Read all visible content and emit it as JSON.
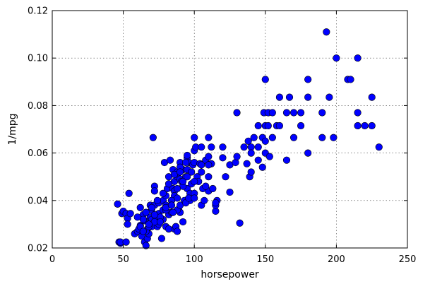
{
  "chart_data": {
    "type": "scatter",
    "title": "",
    "xlabel": "horsepower",
    "ylabel": "1/mpg",
    "xlim": [
      0,
      250
    ],
    "ylim": [
      0.02,
      0.12
    ],
    "xticks": [
      0,
      50,
      100,
      150,
      200,
      250
    ],
    "yticks": [
      0.02,
      0.04,
      0.06,
      0.08,
      0.1,
      0.12
    ],
    "xtick_labels": [
      "0",
      "50",
      "100",
      "150",
      "200",
      "250"
    ],
    "ytick_labels": [
      "0.02",
      "0.04",
      "0.06",
      "0.08",
      "0.10",
      "0.12"
    ],
    "grid": true,
    "marker_color": "#0000ff",
    "series": [
      {
        "x": [
          46,
          47,
          48,
          48,
          49,
          50,
          52,
          52,
          53,
          53,
          54,
          55,
          58,
          60,
          61,
          62,
          62,
          63,
          64,
          65,
          65,
          66,
          67,
          67,
          68,
          68,
          69,
          69,
          70,
          70,
          71,
          72,
          72,
          73,
          74,
          75,
          75,
          76,
          77,
          78,
          78,
          79,
          80,
          80,
          81,
          82,
          82,
          83,
          84,
          85,
          85,
          86,
          86,
          87,
          88,
          88,
          88,
          89,
          90,
          90,
          90,
          91,
          92,
          92,
          93,
          94,
          95,
          95,
          95,
          96,
          97,
          97,
          98,
          99,
          100,
          100,
          100,
          100,
          101,
          102,
          103,
          104,
          105,
          105,
          105,
          106,
          107,
          108,
          110,
          110,
          110,
          110,
          112,
          112,
          113,
          115,
          115,
          116,
          120,
          120,
          122,
          125,
          125,
          129,
          130,
          130,
          132,
          135,
          137,
          138,
          139,
          140,
          140,
          140,
          142,
          145,
          145,
          145,
          148,
          148,
          149,
          150,
          150,
          150,
          150,
          152,
          152,
          153,
          155,
          155,
          158,
          160,
          160,
          165,
          165,
          167,
          170,
          170,
          175,
          175,
          180,
          180,
          180,
          190,
          190,
          193,
          195,
          198,
          200,
          208,
          210,
          215,
          215,
          215,
          220,
          225,
          225,
          230,
          72,
          80,
          84,
          86,
          88,
          86,
          90,
          92,
          94,
          96,
          98,
          70,
          75,
          78,
          82,
          85,
          88,
          66,
          68,
          72,
          76,
          80,
          84,
          88,
          92,
          95,
          62,
          64,
          66,
          70,
          74,
          78,
          82,
          86,
          90,
          60,
          64,
          68,
          72,
          76,
          80,
          84,
          100,
          105,
          110,
          95,
          100,
          108,
          115,
          90,
          94
        ],
        "y": [
          0.0385,
          0.0225,
          0.022,
          0.0225,
          0.0345,
          0.0355,
          0.0345,
          0.0225,
          0.0325,
          0.03,
          0.043,
          0.0345,
          0.026,
          0.027,
          0.028,
          0.037,
          0.0295,
          0.025,
          0.034,
          0.0225,
          0.0315,
          0.021,
          0.024,
          0.028,
          0.03,
          0.026,
          0.033,
          0.038,
          0.032,
          0.029,
          0.0665,
          0.046,
          0.038,
          0.033,
          0.029,
          0.039,
          0.0345,
          0.031,
          0.024,
          0.04,
          0.036,
          0.056,
          0.038,
          0.029,
          0.045,
          0.05,
          0.034,
          0.057,
          0.04,
          0.053,
          0.045,
          0.048,
          0.028,
          0.029,
          0.05,
          0.052,
          0.027,
          0.036,
          0.056,
          0.049,
          0.035,
          0.048,
          0.031,
          0.053,
          0.04,
          0.05,
          0.058,
          0.053,
          0.045,
          0.056,
          0.043,
          0.04,
          0.052,
          0.055,
          0.0665,
          0.061,
          0.056,
          0.043,
          0.0625,
          0.05,
          0.048,
          0.0555,
          0.0625,
          0.055,
          0.038,
          0.045,
          0.04,
          0.057,
          0.0665,
          0.0585,
          0.05,
          0.044,
          0.0555,
          0.0625,
          0.045,
          0.0355,
          0.038,
          0.04,
          0.0625,
          0.058,
          0.05,
          0.055,
          0.0435,
          0.056,
          0.077,
          0.0585,
          0.0305,
          0.0625,
          0.0555,
          0.065,
          0.05,
          0.0625,
          0.06,
          0.052,
          0.0665,
          0.0715,
          0.0625,
          0.057,
          0.0665,
          0.054,
          0.077,
          0.091,
          0.0715,
          0.065,
          0.06,
          0.077,
          0.0715,
          0.0585,
          0.077,
          0.0665,
          0.0715,
          0.0835,
          0.0715,
          0.077,
          0.057,
          0.0835,
          0.0665,
          0.077,
          0.0715,
          0.077,
          0.091,
          0.0835,
          0.06,
          0.0665,
          0.077,
          0.111,
          0.0835,
          0.0665,
          0.1,
          0.091,
          0.091,
          0.1,
          0.077,
          0.0715,
          0.0715,
          0.0835,
          0.0715,
          0.0625,
          0.044,
          0.042,
          0.035,
          0.044,
          0.036,
          0.042,
          0.038,
          0.046,
          0.039,
          0.041,
          0.047,
          0.036,
          0.03,
          0.032,
          0.028,
          0.035,
          0.041,
          0.027,
          0.029,
          0.031,
          0.033,
          0.036,
          0.04,
          0.045,
          0.048,
          0.05,
          0.029,
          0.032,
          0.035,
          0.037,
          0.04,
          0.043,
          0.047,
          0.051,
          0.054,
          0.033,
          0.027,
          0.03,
          0.034,
          0.031,
          0.037,
          0.038,
          0.048,
          0.052,
          0.055,
          0.059,
          0.041,
          0.046,
          0.039,
          0.052,
          0.056
        ]
      }
    ]
  }
}
